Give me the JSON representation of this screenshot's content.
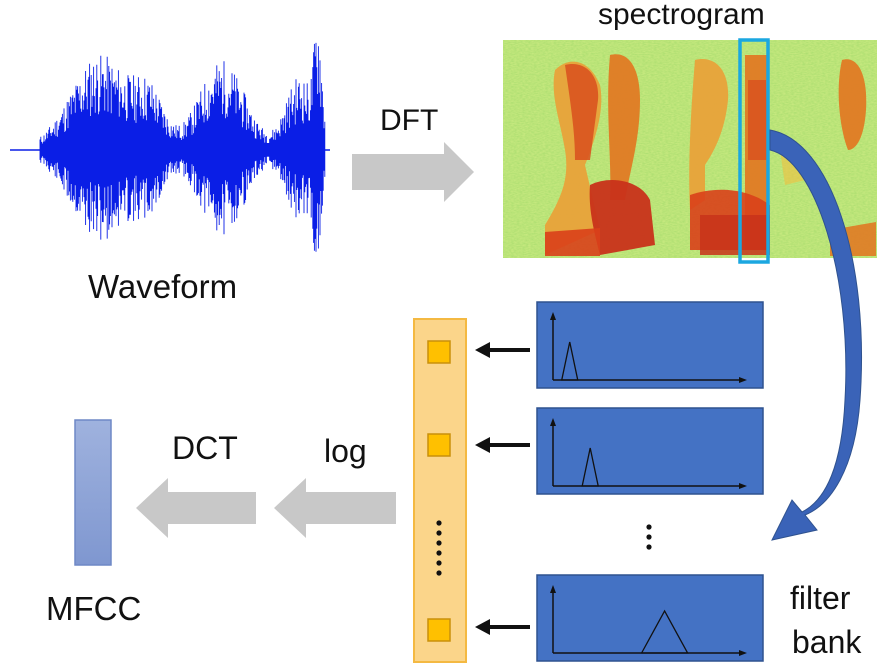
{
  "labels": {
    "spectrogram": "spectrogram",
    "dft": "DFT",
    "waveform": "Waveform",
    "log": "log",
    "dct": "DCT",
    "mfcc": "MFCC",
    "filter_bank_line1": "filter",
    "filter_bank_line2": "bank"
  },
  "ellipsis_glyph": "⋮",
  "icons": {
    "arrow": "block-arrow",
    "curved_arrow": "curved-arrow",
    "triangle_filter": "triangle-filter-icon"
  },
  "colors": {
    "waveform": "#0a1ee6",
    "filter_box": "#4472c4",
    "filter_box_border": "#2f528f",
    "vector_fill": "#fbd58a",
    "vector_border": "#f4b942",
    "vector_cell": "#ffc000",
    "mfcc_fill": "#8ea6d9",
    "gray_arrow": "#c8c8c8",
    "highlight": "#1ba7e0",
    "curved_arrow": "#3a63b8",
    "spectro_low": "#9ed86a",
    "spectro_high": "#d73a1c"
  },
  "filters": [
    {
      "name": "filter-1",
      "peak": 0.09
    },
    {
      "name": "filter-2",
      "peak": 0.2
    },
    {
      "name": "filter-n",
      "peak": 0.6
    }
  ]
}
